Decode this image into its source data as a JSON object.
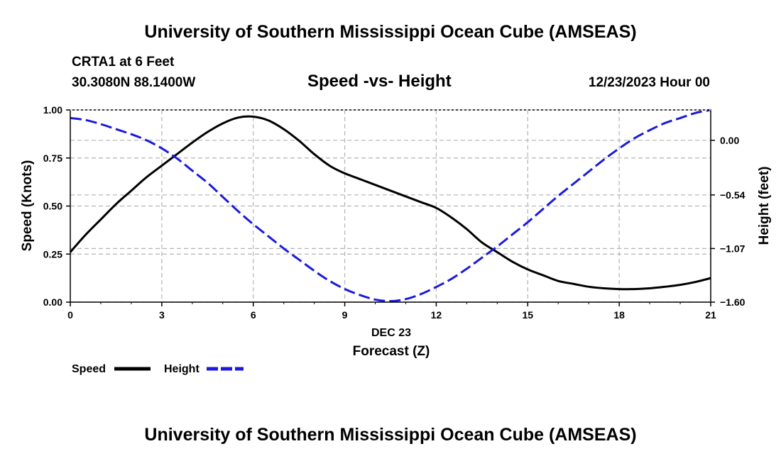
{
  "header": {
    "title": "University of Southern Mississippi Ocean Cube (AMSEAS)",
    "station": "CRTA1 at 6 Feet",
    "coords": "30.3080N  88.1400W",
    "date": "12/23/2023 Hour 00"
  },
  "footer": {
    "title": "University of Southern Mississippi Ocean Cube (AMSEAS)"
  },
  "colors": {
    "speed": "#000000",
    "height": "#1a1adc",
    "grid": "#b4b4b4"
  },
  "chart_data": {
    "type": "line",
    "title": "Speed -vs- Height",
    "xlabel": "Forecast (Z)",
    "xlabel_date": "DEC 23",
    "ylabel": "Speed (Knots)",
    "ylabel_right": "Height (feet)",
    "xlim": [
      0,
      21
    ],
    "ylim": [
      0,
      1
    ],
    "ylim_right": [
      -1.6,
      0.3
    ],
    "x_ticks": [
      "0",
      "3",
      "6",
      "9",
      "12",
      "15",
      "18",
      "21"
    ],
    "y_ticks": [
      "0.00",
      "0.25",
      "0.50",
      "0.75",
      "1.00"
    ],
    "y_ticks_right": [
      {
        "value": 0.0,
        "label": "0.00"
      },
      {
        "value": -0.54,
        "label": "-0.54"
      },
      {
        "value": -1.07,
        "label": "-1.07"
      },
      {
        "value": -1.6,
        "label": "-1.60"
      }
    ],
    "series": [
      {
        "name": "Speed",
        "axis": "left",
        "style": "solid",
        "x": [
          0,
          0.5,
          1,
          1.5,
          2,
          2.5,
          3,
          3.5,
          4,
          4.5,
          5,
          5.5,
          6,
          6.5,
          7,
          7.5,
          8,
          8.5,
          9,
          9.5,
          10,
          10.5,
          11,
          11.5,
          12,
          12.5,
          13,
          13.5,
          14,
          14.5,
          15,
          15.5,
          16,
          16.5,
          17,
          17.5,
          18,
          18.5,
          19,
          19.5,
          20,
          20.5,
          21
        ],
        "values": [
          0.26,
          0.35,
          0.43,
          0.51,
          0.58,
          0.65,
          0.71,
          0.77,
          0.83,
          0.885,
          0.93,
          0.96,
          0.965,
          0.945,
          0.9,
          0.84,
          0.77,
          0.71,
          0.67,
          0.64,
          0.61,
          0.58,
          0.55,
          0.52,
          0.49,
          0.44,
          0.38,
          0.31,
          0.26,
          0.21,
          0.17,
          0.14,
          0.11,
          0.095,
          0.08,
          0.072,
          0.068,
          0.068,
          0.072,
          0.08,
          0.09,
          0.105,
          0.125
        ]
      },
      {
        "name": "Height",
        "axis": "right",
        "style": "dashed",
        "x": [
          0,
          0.5,
          1,
          1.5,
          2,
          2.5,
          3,
          3.5,
          4,
          4.5,
          5,
          5.5,
          6,
          6.5,
          7,
          7.5,
          8,
          8.5,
          9,
          9.5,
          10,
          10.5,
          11,
          11.5,
          12,
          12.5,
          13,
          13.5,
          14,
          14.5,
          15,
          15.5,
          16,
          16.5,
          17,
          17.5,
          18,
          18.5,
          19,
          19.5,
          20,
          20.5,
          21
        ],
        "values": [
          0.22,
          0.2,
          0.16,
          0.11,
          0.06,
          0.0,
          -0.08,
          -0.18,
          -0.3,
          -0.42,
          -0.56,
          -0.7,
          -0.83,
          -0.95,
          -1.07,
          -1.18,
          -1.29,
          -1.39,
          -1.47,
          -1.53,
          -1.575,
          -1.59,
          -1.57,
          -1.52,
          -1.45,
          -1.37,
          -1.27,
          -1.16,
          -1.05,
          -0.93,
          -0.81,
          -0.68,
          -0.55,
          -0.43,
          -0.31,
          -0.19,
          -0.08,
          0.02,
          0.1,
          0.17,
          0.22,
          0.27,
          0.3
        ]
      }
    ],
    "legend": [
      "Speed",
      "Height"
    ]
  }
}
